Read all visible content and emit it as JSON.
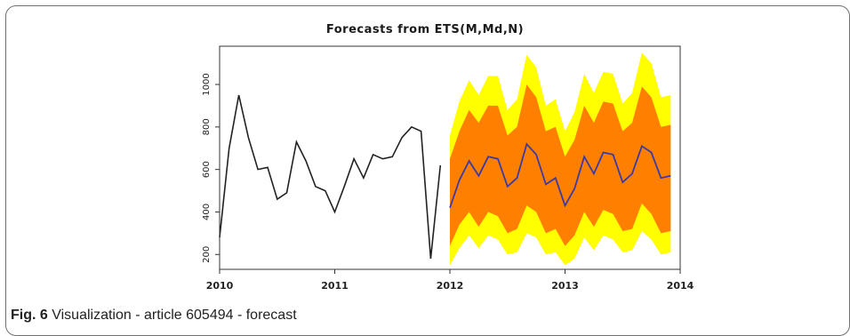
{
  "caption": {
    "label": "Fig. 6",
    "text": "Visualization - article 605494 - forecast"
  },
  "chart_data": {
    "type": "line",
    "title": "Forecasts from ETS(M,Md,N)",
    "xlabel": "",
    "ylabel": "",
    "xlim": [
      2010,
      2014
    ],
    "ylim": [
      130,
      1180
    ],
    "x_ticks": [
      "2010",
      "2011",
      "2012",
      "2013",
      "2014"
    ],
    "y_ticks": [
      "200",
      "400",
      "600",
      "800",
      "1000"
    ],
    "grid": false,
    "colors": {
      "history": "#222222",
      "forecast": "#3a3aa8",
      "band80": "#ff8000",
      "band95": "#ffff00"
    },
    "history": {
      "x": [
        2010.0,
        2010.083,
        2010.167,
        2010.25,
        2010.333,
        2010.417,
        2010.5,
        2010.583,
        2010.667,
        2010.75,
        2010.833,
        2010.917,
        2011.0,
        2011.083,
        2011.167,
        2011.25,
        2011.333,
        2011.417,
        2011.5,
        2011.583,
        2011.667,
        2011.75,
        2011.833,
        2011.917
      ],
      "y": [
        280,
        700,
        950,
        750,
        600,
        610,
        460,
        490,
        730,
        640,
        520,
        500,
        400,
        520,
        650,
        560,
        670,
        650,
        660,
        750,
        800,
        780,
        180,
        620
      ]
    },
    "forecast": {
      "x": [
        2012.0,
        2012.083,
        2012.167,
        2012.25,
        2012.333,
        2012.417,
        2012.5,
        2012.583,
        2012.667,
        2012.75,
        2012.833,
        2012.917,
        2013.0,
        2013.083,
        2013.167,
        2013.25,
        2013.333,
        2013.417,
        2013.5,
        2013.583,
        2013.667,
        2013.75,
        2013.833,
        2013.917
      ],
      "mean": [
        420,
        550,
        640,
        570,
        660,
        650,
        520,
        560,
        720,
        670,
        530,
        560,
        430,
        510,
        660,
        580,
        680,
        670,
        540,
        580,
        710,
        680,
        560,
        570
      ],
      "lo80": [
        240,
        340,
        400,
        330,
        400,
        380,
        300,
        320,
        430,
        400,
        300,
        320,
        240,
        290,
        400,
        330,
        410,
        390,
        310,
        320,
        440,
        390,
        300,
        310
      ],
      "hi80": [
        650,
        780,
        880,
        820,
        900,
        900,
        760,
        800,
        1000,
        940,
        780,
        800,
        660,
        740,
        900,
        820,
        920,
        910,
        780,
        820,
        990,
        940,
        800,
        810
      ],
      "lo95": [
        150,
        230,
        290,
        230,
        290,
        270,
        200,
        210,
        300,
        280,
        200,
        210,
        150,
        180,
        280,
        220,
        290,
        270,
        210,
        220,
        310,
        270,
        200,
        210
      ],
      "hi95": [
        760,
        920,
        1020,
        950,
        1040,
        1040,
        880,
        930,
        1140,
        1080,
        900,
        930,
        780,
        870,
        1050,
        960,
        1060,
        1050,
        910,
        960,
        1150,
        1100,
        940,
        950
      ]
    }
  }
}
